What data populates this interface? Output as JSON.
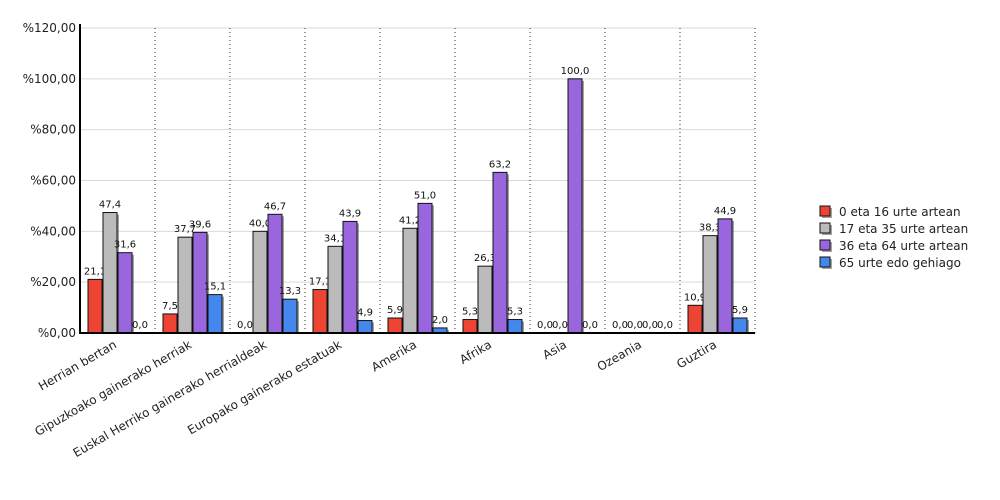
{
  "chart_data": {
    "type": "bar",
    "categories": [
      "Herrian bertan",
      "Gipuzkoako gainerako herriak",
      "Euskal Herriko gainerako herrialdeak",
      "Europako gainerako estatuak",
      "Amerika",
      "Afrika",
      "Asia",
      "Ozeania",
      "Guztira"
    ],
    "series": [
      {
        "name": "0 eta 16 urte artean",
        "color": "#ee4433",
        "values": [
          21.1,
          7.5,
          0.0,
          17.1,
          5.9,
          5.3,
          0.0,
          0.0,
          10.9
        ],
        "labels": [
          "21,1",
          "7,5",
          "0,0",
          "17,1",
          "5,9",
          "5,3",
          "0,0",
          "0,0",
          "10,9"
        ]
      },
      {
        "name": "17 eta 35 urte artean",
        "color": "#bbbbbb",
        "values": [
          47.4,
          37.7,
          40.0,
          34.1,
          41.2,
          26.3,
          0.0,
          0.0,
          38.3
        ],
        "labels": [
          "47,4",
          "37,7",
          "40,0",
          "34,1",
          "41,2",
          "26,3",
          "0,0",
          "0,0",
          "38,3"
        ]
      },
      {
        "name": "36 eta 64 urte artean",
        "color": "#9966dd",
        "values": [
          31.6,
          39.6,
          46.7,
          43.9,
          51.0,
          63.2,
          100.0,
          0.0,
          44.9
        ],
        "labels": [
          "31,6",
          "39,6",
          "46,7",
          "43,9",
          "51,0",
          "63,2",
          "100,0",
          "0,0",
          "44,9"
        ]
      },
      {
        "name": "65 urte edo gehiago",
        "color": "#4488ee",
        "values": [
          0.0,
          15.1,
          13.3,
          4.9,
          2.0,
          5.3,
          0.0,
          0.0,
          5.9
        ],
        "labels": [
          "0,0",
          "15,1",
          "13,3",
          "4,9",
          "2,0",
          "5,3",
          "0,0",
          "0,0",
          "5,9"
        ]
      }
    ],
    "y_ticks": [
      "%0,00",
      "%20,00",
      "%40,00",
      "%60,00",
      "%80,00",
      "%100,00",
      "%120,00"
    ],
    "ylim": [
      0,
      120
    ],
    "title": "",
    "xlabel": "",
    "ylabel": "",
    "grid": true,
    "legend_position": "right"
  }
}
